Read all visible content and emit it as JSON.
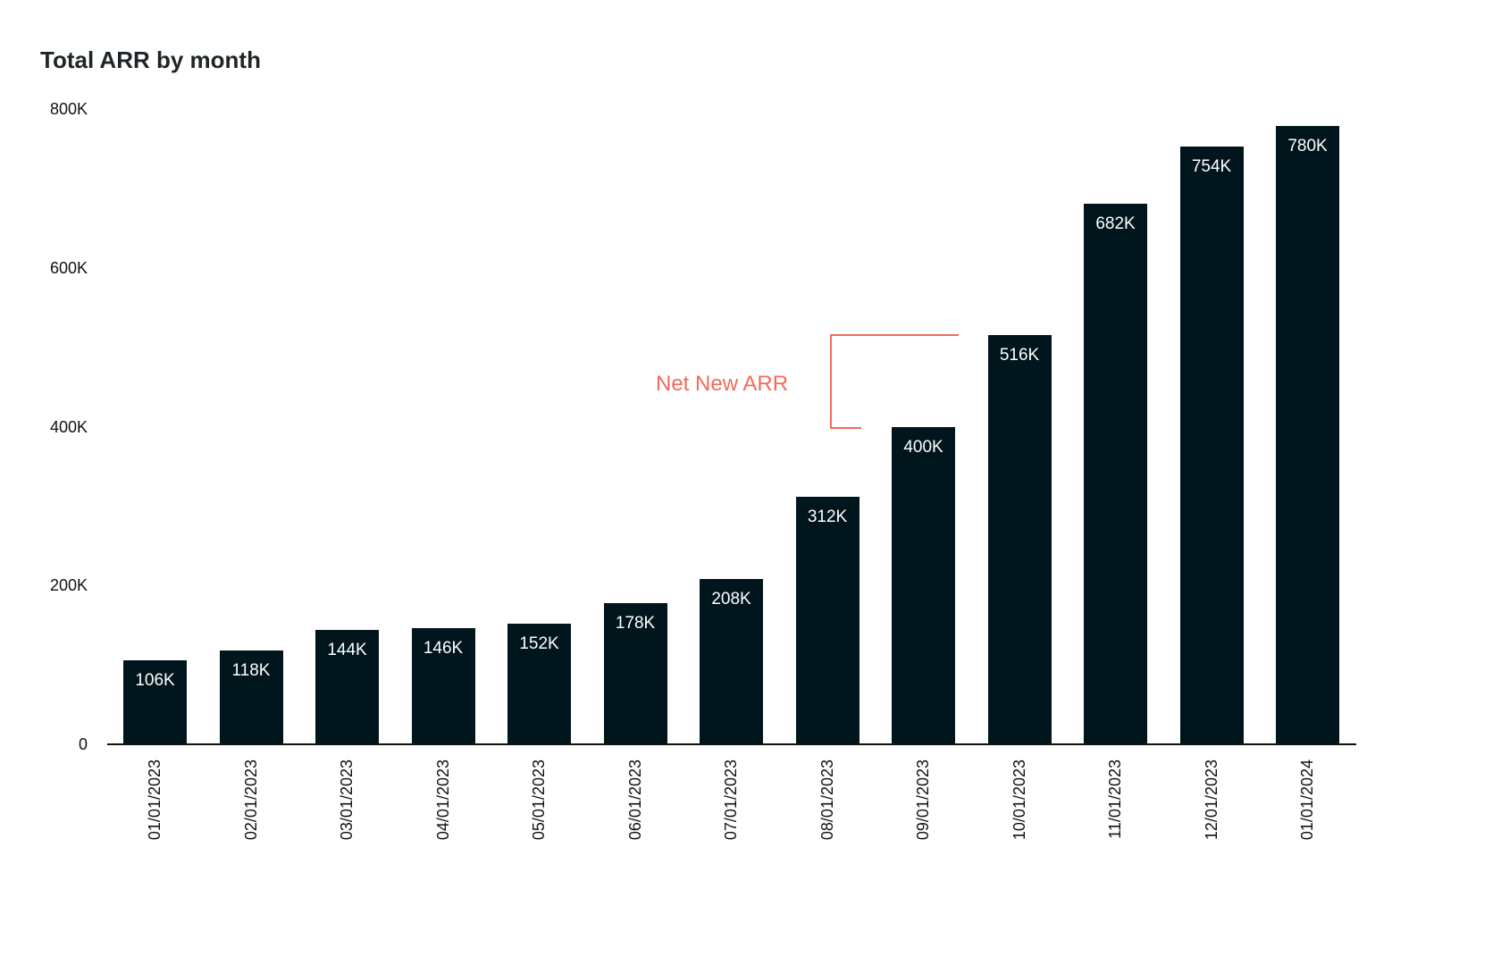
{
  "title": "Total ARR by month",
  "annotation": {
    "text": "Net New ARR",
    "color": "#f46b5a"
  },
  "y_ticks": [
    "800K",
    "600K",
    "400K",
    "200K",
    "0"
  ],
  "bars": [
    {
      "date": "01/01/2023",
      "label": "106K"
    },
    {
      "date": "02/01/2023",
      "label": "118K"
    },
    {
      "date": "03/01/2023",
      "label": "144K"
    },
    {
      "date": "04/01/2023",
      "label": "146K"
    },
    {
      "date": "05/01/2023",
      "label": "152K"
    },
    {
      "date": "06/01/2023",
      "label": "178K"
    },
    {
      "date": "07/01/2023",
      "label": "208K"
    },
    {
      "date": "08/01/2023",
      "label": "312K"
    },
    {
      "date": "09/01/2023",
      "label": "400K"
    },
    {
      "date": "10/01/2023",
      "label": "516K"
    },
    {
      "date": "11/01/2023",
      "label": "682K"
    },
    {
      "date": "12/01/2023",
      "label": "754K"
    },
    {
      "date": "01/01/2024",
      "label": "780K"
    }
  ],
  "chart_data": {
    "type": "bar",
    "title": "Total ARR by month",
    "xlabel": "",
    "ylabel": "",
    "ylim": [
      0,
      800000
    ],
    "y_tick_labels": [
      "0",
      "200K",
      "400K",
      "600K",
      "800K"
    ],
    "categories": [
      "01/01/2023",
      "02/01/2023",
      "03/01/2023",
      "04/01/2023",
      "05/01/2023",
      "06/01/2023",
      "07/01/2023",
      "08/01/2023",
      "09/01/2023",
      "10/01/2023",
      "11/01/2023",
      "12/01/2023",
      "01/01/2024"
    ],
    "values": [
      106000,
      118000,
      144000,
      146000,
      152000,
      178000,
      208000,
      312000,
      400000,
      516000,
      682000,
      754000,
      780000
    ],
    "data_labels": [
      "106K",
      "118K",
      "144K",
      "146K",
      "152K",
      "178K",
      "208K",
      "312K",
      "400K",
      "516K",
      "682K",
      "754K",
      "780K"
    ],
    "annotations": [
      {
        "text": "Net New ARR",
        "spans": [
          "09/01/2023",
          "10/01/2023"
        ],
        "color": "#f46b5a"
      }
    ],
    "grid": false,
    "bar_color": "#01161c"
  }
}
